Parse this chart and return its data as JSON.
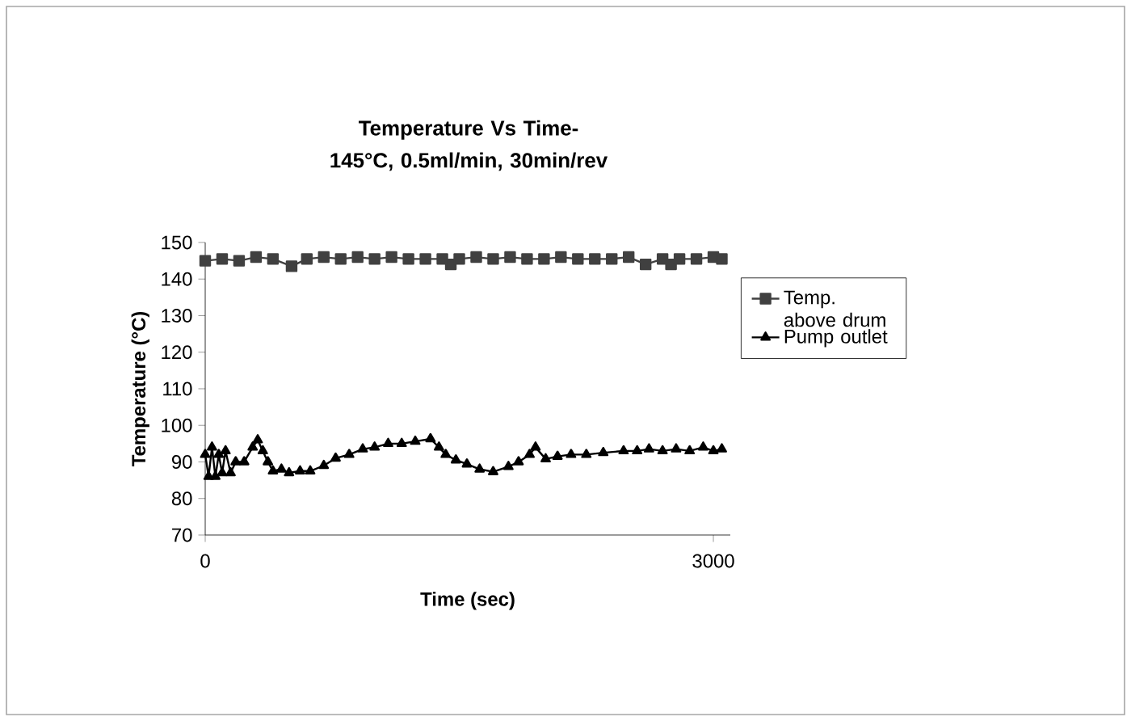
{
  "chart_data": {
    "type": "line",
    "title": "Temperature Vs Time- 145°C, 0.5ml/min, 30min/rev",
    "xlabel": "Time (sec)",
    "ylabel": "Temperature (°C)",
    "xlim": [
      0,
      3100
    ],
    "xticks": [
      0,
      3000
    ],
    "ylim": [
      70,
      150
    ],
    "yticks": [
      70,
      80,
      90,
      100,
      110,
      120,
      130,
      140,
      150
    ],
    "legend": "right",
    "grid": false,
    "series": [
      {
        "name": "Temp. above drum",
        "color": "#404040",
        "marker": "square",
        "x": [
          0,
          100,
          200,
          300,
          400,
          510,
          600,
          700,
          800,
          900,
          1000,
          1100,
          1200,
          1300,
          1400,
          1450,
          1500,
          1600,
          1700,
          1800,
          1900,
          2000,
          2100,
          2200,
          2300,
          2400,
          2500,
          2600,
          2700,
          2750,
          2800,
          2900,
          3000,
          3050
        ],
        "values": [
          145,
          145.5,
          145,
          146,
          145.5,
          143.5,
          145.5,
          146,
          145.5,
          146,
          145.5,
          146,
          145.5,
          145.5,
          145.5,
          144,
          145.5,
          146,
          145.5,
          146,
          145.5,
          145.5,
          146,
          145.5,
          145.5,
          145.5,
          146,
          144,
          145.5,
          144,
          145.5,
          145.5,
          146,
          145.5
        ]
      },
      {
        "name": "Pump outlet",
        "color": "#000000",
        "marker": "triangle",
        "x": [
          0,
          20,
          40,
          60,
          80,
          100,
          120,
          150,
          180,
          230,
          280,
          310,
          340,
          370,
          400,
          450,
          495,
          560,
          620,
          700,
          770,
          850,
          930,
          1000,
          1080,
          1160,
          1240,
          1330,
          1380,
          1420,
          1480,
          1545,
          1620,
          1700,
          1790,
          1850,
          1915,
          1950,
          2010,
          2080,
          2160,
          2250,
          2350,
          2470,
          2550,
          2620,
          2700,
          2780,
          2860,
          2940,
          3000,
          3050
        ],
        "values": [
          92,
          86,
          94,
          86,
          92,
          87,
          93,
          87,
          90,
          90,
          94,
          96,
          93,
          90,
          87.5,
          88,
          87,
          87.5,
          87.5,
          89,
          91,
          92,
          93.5,
          94,
          95,
          95,
          95.6,
          96.3,
          94,
          92,
          90.5,
          89.4,
          88,
          87.3,
          88.7,
          90,
          92,
          94,
          90.8,
          91.5,
          92,
          92,
          92.5,
          93,
          93,
          93.5,
          93,
          93.5,
          93,
          94,
          93,
          93.5
        ]
      }
    ]
  }
}
